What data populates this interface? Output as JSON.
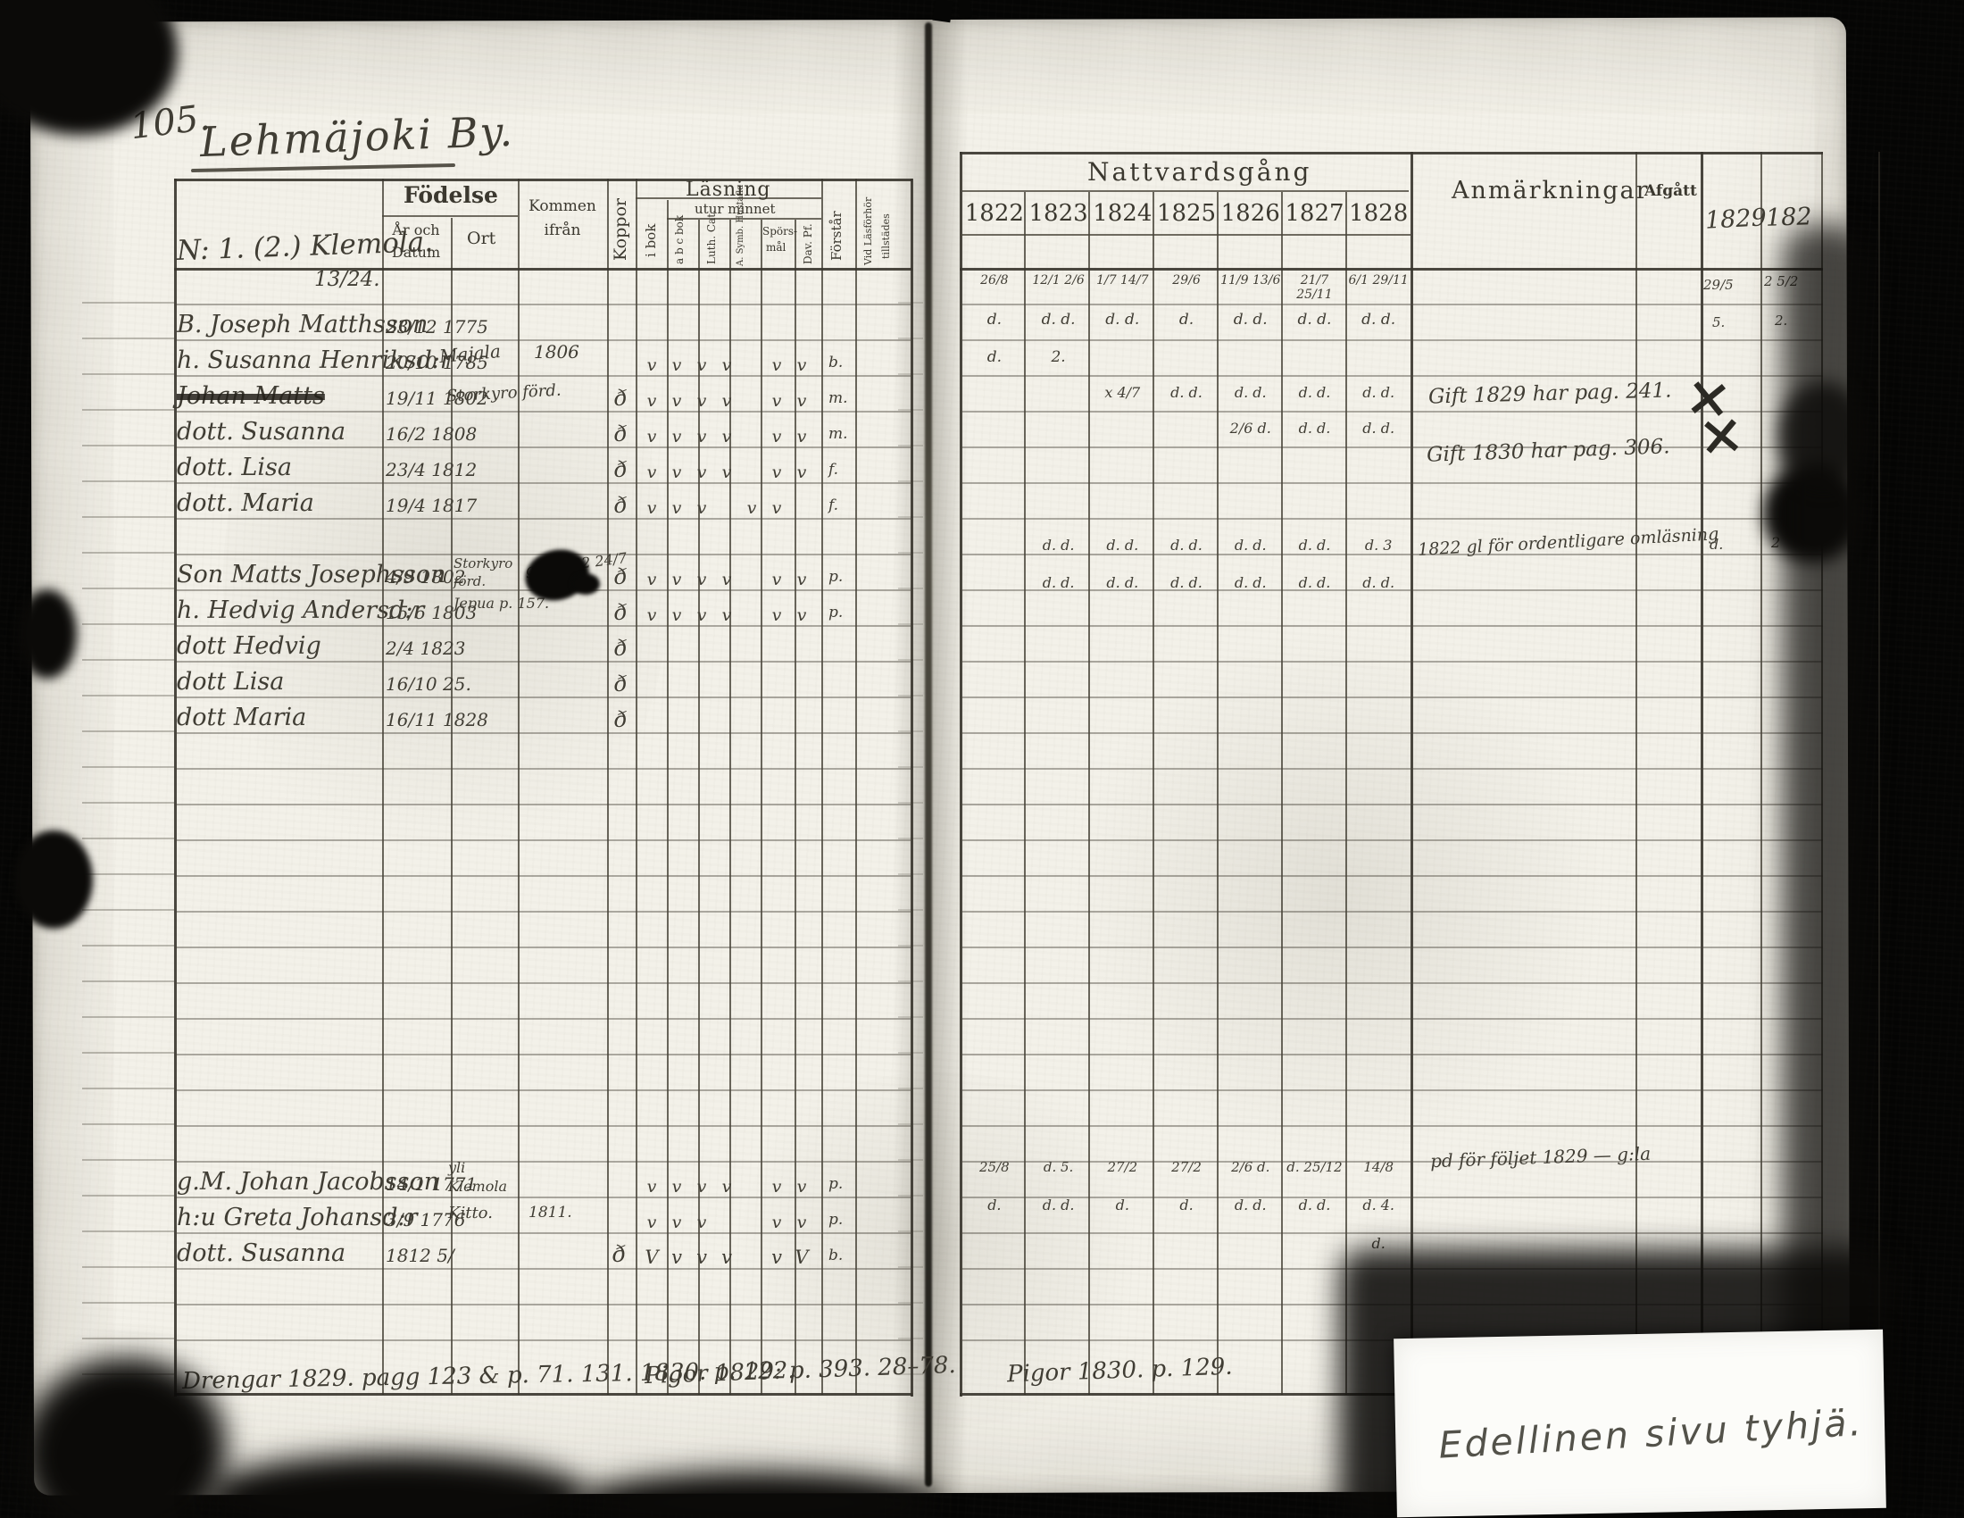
{
  "page": {
    "number": "105.",
    "title": "Lehmäjoki By.",
    "note_name": "N: 1. (2.) Klemola.",
    "note_fraction": "13/24."
  },
  "left_table": {
    "headers": {
      "fodelse": "Födelse",
      "ar_och_datum": "År och Datum",
      "ort": "Ort",
      "kommen_ifran": "Kommen ifrån",
      "koppor": "Koppor",
      "lasning": "Läsning",
      "i_bok": "i bok",
      "utur_minnet": "utur minnet",
      "abc_bok": "a b c bok",
      "luth_cat": "Luth. Cat.",
      "symb_hustafla": "A. Symb. Hustafla",
      "sporsmal1": "Spörs-",
      "sporsmal2": "mål",
      "dav_ps": "Dav. Pf.",
      "forstar": "Förstår",
      "vid_lasforhor": "Vid Läsförhör",
      "tillstades": "tillstädes"
    },
    "rows": [
      {
        "name": "B. Joseph Matthsson",
        "born": "23/12 1775"
      },
      {
        "name": "h. Susanna Henriksd:r",
        "born": "20/10 1785",
        "ort": "Majala",
        "ifran": "1806",
        "checks": [
          "v",
          "v",
          "v",
          "v",
          "",
          "v",
          "v"
        ],
        "forstar": "b."
      },
      {
        "name": "Johan Matts",
        "born": "19/11 1802",
        "ort": "Storkyro förd.",
        "koppor": "ð",
        "checks": [
          "v",
          "v",
          "v",
          "v",
          "",
          "v",
          "v"
        ],
        "forstar": "m."
      },
      {
        "name": "dott. Susanna",
        "born": "16/2 1808",
        "koppor": "ð",
        "checks": [
          "v",
          "v",
          "v",
          "v",
          "",
          "v",
          "v"
        ],
        "forstar": "m."
      },
      {
        "name": "dott. Lisa",
        "born": "23/4 1812",
        "koppor": "ð",
        "checks": [
          "v",
          "v",
          "v",
          "v",
          "",
          "v",
          "v"
        ],
        "forstar": "f."
      },
      {
        "name": "dott. Maria",
        "born": "19/4 1817",
        "koppor": "ð",
        "checks": [
          "v",
          "v",
          "v",
          "",
          "v",
          "v",
          ""
        ],
        "forstar": "f."
      },
      {
        "name": "Son Matts Josephsson",
        "born": "4/9 1802",
        "ort": "Storkyro förd.",
        "ifran": "gift 1822 24/7",
        "koppor": "ð",
        "checks": [
          "v",
          "v",
          "v",
          "v",
          "",
          "v",
          "v"
        ],
        "forstar": "p."
      },
      {
        "name": "h. Hedvig Andersd:r",
        "born": "15/6 1803",
        "ort": "Jepua p. 157.",
        "koppor": "ð",
        "checks": [
          "v",
          "v",
          "v",
          "v",
          "",
          "v",
          "v"
        ],
        "forstar": "p."
      },
      {
        "name": "dott Hedvig",
        "born": "2/4 1823",
        "koppor": "ð"
      },
      {
        "name": "dott Lisa",
        "born": "16/10 25.",
        "koppor": "ð"
      },
      {
        "name": "dott Maria",
        "born": "16/11 1828",
        "koppor": "ð"
      },
      {
        "name": "g.M. Johan Jacobsson",
        "born": "14/1 1771",
        "ort": "yli Klemola",
        "checks": [
          "v",
          "v",
          "v",
          "v",
          "",
          "v",
          "v"
        ],
        "forstar": "p."
      },
      {
        "name": "h:u Greta Johansd:r",
        "born": "3/9 1776",
        "ort": "Kitto.",
        "ifran": "1811.",
        "checks": [
          "v",
          "v",
          "v",
          "",
          "",
          "v",
          "v"
        ],
        "forstar": "p."
      },
      {
        "name": "dott. Susanna",
        "born": "1812 5/",
        "koppor": "ð",
        "checks": [
          "V",
          "v",
          "v",
          "v",
          "",
          "v",
          "V"
        ],
        "forstar": "b."
      }
    ],
    "footer_left": "Drengar 1829. pagg 123 & p. 71. 131. 1830. p. 122.",
    "footer_right": "Pigor 1829: p. 393. 28–78."
  },
  "right_table": {
    "headers": {
      "nattvardsgang": "Nattvardsgång",
      "years": [
        "1822",
        "1823",
        "1824",
        "1825",
        "1826",
        "1827",
        "1828"
      ],
      "anmarkningar": "Anmärkningar",
      "afgatt": "Afgått",
      "extra_year_1": "1829",
      "extra_year_2": "182"
    },
    "communion_rows": [
      {
        "cells": [
          "26/8",
          "12/1 2/6",
          "1/7 14/7",
          "29/6",
          "11/9 13/6",
          "21/7 25/11",
          "6/1 29/11"
        ]
      },
      {
        "cells": [
          "d.",
          "d. d.",
          "d. d.",
          "d.",
          "d. d.",
          "d. d.",
          "d. d."
        ]
      },
      {
        "cells": [
          "d.",
          "2.",
          "",
          "",
          "",
          "",
          ""
        ]
      },
      {
        "cells": [
          "",
          "",
          "x 4/7",
          "d. d.",
          "d. d.",
          "d. d.",
          "d. d."
        ]
      },
      {
        "cells": [
          "",
          "",
          "",
          "",
          "2/6 d.",
          "d. d.",
          "d. d."
        ]
      },
      {
        "cells": [
          "",
          "d. d.",
          "d. d.",
          "d. d.",
          "d. d.",
          "d. d.",
          "d. 3"
        ]
      },
      {
        "cells": [
          "",
          "d. d.",
          "d. d.",
          "d. d.",
          "d. d.",
          "d. d.",
          "d. d."
        ]
      },
      {
        "cells": [
          "25/8",
          "d. 5.",
          "27/2",
          "27/2",
          "2/6 d.",
          "d. 25/12",
          "14/8"
        ]
      },
      {
        "cells": [
          "d.",
          "d. d.",
          "d.",
          "d.",
          "d. d.",
          "d. d.",
          "d. 4."
        ]
      },
      {
        "cells": [
          "",
          "",
          "",
          "",
          "",
          "",
          "d."
        ]
      }
    ],
    "remarks": [
      "Gift 1829 har pag. 241.",
      "Gift 1830 har pag. 306.",
      "1822 gl för ordentligare omläsning",
      "pd för följet 1829 — g:la"
    ],
    "afgatt_marks": [
      "×",
      "×"
    ],
    "edge_marks": [
      "29/5",
      "2 5/2",
      "5.",
      "2.",
      "d.",
      "2"
    ],
    "footer": "Pigor 1830. p. 129."
  },
  "label": {
    "text": "Edellinen sivu tyhjä."
  }
}
